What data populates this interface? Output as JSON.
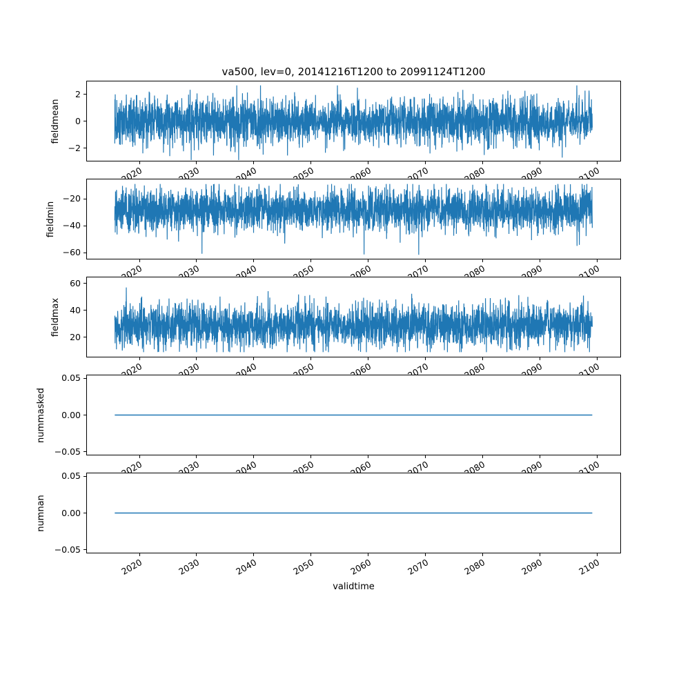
{
  "figure": {
    "background": "#ffffff"
  },
  "chart_data": {
    "type": "line",
    "title": "va500, lev=0, 20141216T1200 to 20991124T1200",
    "xlabel": "validtime",
    "line_color": "#1f77b4",
    "axis_color": "#000000",
    "text_color": "#000000",
    "grid": false,
    "legend": null,
    "x_start": 2014.96,
    "x_end": 2099.9,
    "xlim": [
      2010.7,
      2104.2
    ],
    "x_ticks": [
      2020,
      2030,
      2040,
      2050,
      2060,
      2070,
      2080,
      2090,
      2100
    ],
    "x_tick_labels": [
      "2020",
      "2030",
      "2040",
      "2050",
      "2060",
      "2070",
      "2080",
      "2090",
      "2100"
    ],
    "x_tick_rotation_deg": 30,
    "n_points": 3100,
    "seed": 12,
    "subplots": [
      {
        "ylabel": "fieldmean",
        "ylim": [
          -3,
          3
        ],
        "yticks": [
          {
            "value": 2,
            "label": "2"
          },
          {
            "value": 0,
            "label": "0"
          },
          {
            "value": -2,
            "label": "−2"
          }
        ],
        "series": {
          "kind": "gaussian_noise",
          "mean": 0,
          "std": 0.85,
          "min": -2.95,
          "max": 2.7
        }
      },
      {
        "ylabel": "fieldmin",
        "ylim": [
          -65,
          -5
        ],
        "yticks": [
          {
            "value": -20,
            "label": "−20"
          },
          {
            "value": -40,
            "label": "−40"
          },
          {
            "value": -60,
            "label": "−60"
          }
        ],
        "series": {
          "kind": "gaussian_noise",
          "mean": -28,
          "std": 8,
          "min": -62,
          "max": -8.5
        }
      },
      {
        "ylabel": "fieldmax",
        "ylim": [
          5,
          65
        ],
        "yticks": [
          {
            "value": 60,
            "label": "60"
          },
          {
            "value": 40,
            "label": "40"
          },
          {
            "value": 20,
            "label": "20"
          }
        ],
        "series": {
          "kind": "gaussian_noise",
          "mean": 28.5,
          "std": 8,
          "min": 8.5,
          "max": 63
        }
      },
      {
        "ylabel": "nummasked",
        "ylim": [
          -0.055,
          0.055
        ],
        "yticks": [
          {
            "value": 0.05,
            "label": "0.05"
          },
          {
            "value": 0,
            "label": "0.00"
          },
          {
            "value": -0.05,
            "label": "−0.05"
          }
        ],
        "series": {
          "kind": "constant",
          "value": 0
        }
      },
      {
        "ylabel": "numnan",
        "ylim": [
          -0.055,
          0.055
        ],
        "yticks": [
          {
            "value": 0.05,
            "label": "0.05"
          },
          {
            "value": 0,
            "label": "0.00"
          },
          {
            "value": -0.05,
            "label": "−0.05"
          }
        ],
        "series": {
          "kind": "constant",
          "value": 0
        }
      }
    ]
  }
}
